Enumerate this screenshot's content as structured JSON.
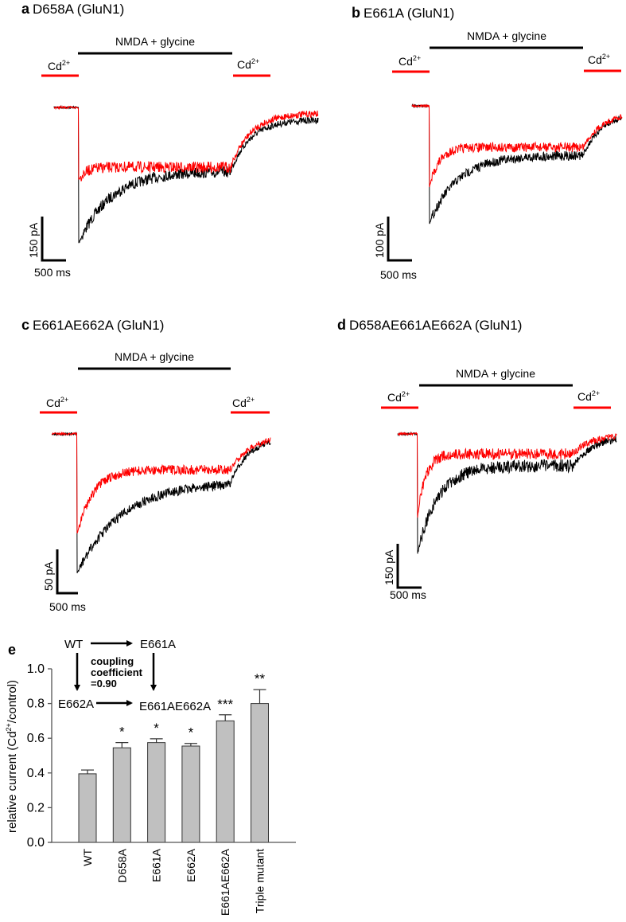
{
  "panels": [
    {
      "letter": "a",
      "title": "D658A (GluN1)",
      "agonist": "NMDA + glycine",
      "cd_label": "Cd",
      "cd_sup": "2+",
      "scale_current": "150 pA",
      "scale_time": "500 ms"
    },
    {
      "letter": "b",
      "title": "E661A (GluN1)",
      "agonist": "NMDA + glycine",
      "cd_label": "Cd",
      "cd_sup": "2+",
      "scale_current": "100 pA",
      "scale_time": "500 ms"
    },
    {
      "letter": "c",
      "title": "E661AE662A (GluN1)",
      "agonist": "NMDA + glycine",
      "cd_label": "Cd",
      "cd_sup": "2+",
      "scale_current": "50 pA",
      "scale_time": "500 ms"
    },
    {
      "letter": "d",
      "title": "D658AE661AE662A (GluN1)",
      "agonist": "NMDA + glycine",
      "cd_label": "Cd",
      "cd_sup": "2+",
      "scale_current": "150 pA",
      "scale_time": "500 ms"
    }
  ],
  "colors": {
    "control": "#000000",
    "cadmium": "#ff0000",
    "bar": "#c0c0c0"
  },
  "chart_data": {
    "type": "bar",
    "panel_letter": "e",
    "ylabel_main": "relative current (Cd",
    "ylabel_sup": "2+",
    "ylabel_end": "/control)",
    "ylim": [
      0,
      1.0
    ],
    "yticks": [
      "0.0",
      "0.2",
      "0.4",
      "0.6",
      "0.8",
      "1.0"
    ],
    "categories": [
      "WT",
      "D658A",
      "E661A",
      "E662A",
      "E661AE662A",
      "Triple mutant"
    ],
    "values": [
      0.395,
      0.545,
      0.575,
      0.555,
      0.7,
      0.8
    ],
    "errors": [
      0.022,
      0.03,
      0.022,
      0.015,
      0.035,
      0.08
    ],
    "significance": [
      "",
      "*",
      "*",
      "*",
      "***",
      "**"
    ],
    "cycle": {
      "wt": "WT",
      "single_a": "E661A",
      "single_b": "E662A",
      "double": "E661AE662A",
      "coupling_1": "coupling",
      "coupling_2": "coefficient",
      "coupling_3": "=0.90"
    }
  }
}
